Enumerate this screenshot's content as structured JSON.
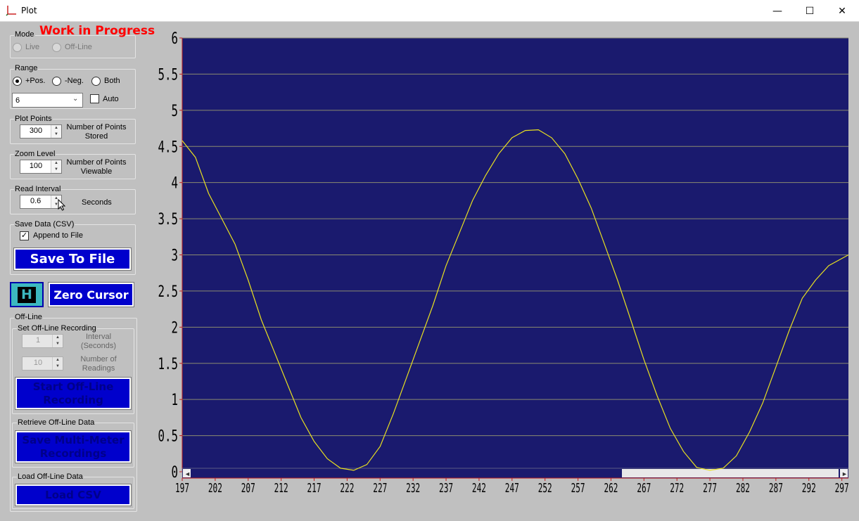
{
  "window": {
    "title": "Plot",
    "controls": [
      "—",
      "☐",
      "✕"
    ]
  },
  "wip": "Work in Progress",
  "mode": {
    "label": "Mode",
    "live": "Live",
    "offline": "Off-Line"
  },
  "range": {
    "label": "Range",
    "pos": "+Pos.",
    "neg": "-Neg.",
    "both": "Both",
    "selected": "6",
    "auto": "Auto"
  },
  "plot_points": {
    "label": "Plot Points",
    "value": "300",
    "desc": "Number of Points Stored"
  },
  "zoom": {
    "label": "Zoom Level",
    "value": "100",
    "desc": "Number of Points Viewable"
  },
  "read_interval": {
    "label": "Read Interval",
    "value": "0.6",
    "desc": "Seconds"
  },
  "save_data": {
    "label": "Save Data (CSV)",
    "append": "Append to File",
    "button": "Save To File"
  },
  "hold_button": "H",
  "zero_cursor": "Zero Cursor",
  "offline": {
    "label": "Off-Line",
    "set_label": "Set Off-Line Recording",
    "interval_value": "1",
    "interval_label": "Interval (Seconds)",
    "readings_value": "10",
    "readings_label": "Number of Readings",
    "start_button": "Start Off-Line Recording",
    "retrieve_label": "Retrieve Off-Line Data",
    "save_button": "Save Multi-Meter Recordings",
    "load_label": "Load Off-Line Data",
    "load_button": "Load CSV"
  },
  "colors": {
    "plot_bg": "#1a1a6e",
    "trace": "#e8e020",
    "grid": "#8a8a70",
    "button": "#0000cc",
    "wip": "#ff0000"
  },
  "chart_data": {
    "type": "line",
    "title": "",
    "xlabel": "",
    "ylabel": "",
    "y_ticks": [
      "6",
      "5.5",
      "5",
      "4.5",
      "4",
      "3.5",
      "3",
      "2.5",
      "2",
      "1.5",
      "1",
      "0.5",
      "0"
    ],
    "x_ticks": [
      "197",
      "202",
      "207",
      "212",
      "217",
      "222",
      "227",
      "232",
      "237",
      "242",
      "247",
      "252",
      "257",
      "262",
      "267",
      "272",
      "277",
      "282",
      "287",
      "292",
      "297"
    ],
    "ylim": [
      0,
      6
    ],
    "xlim": [
      197,
      298
    ],
    "grid": true,
    "series": [
      {
        "x": [
          197,
          199,
          201,
          203,
          205,
          207,
          209,
          211,
          213,
          215,
          217,
          219,
          221,
          223,
          225,
          227,
          229,
          231,
          233,
          235,
          237,
          239,
          241,
          243,
          245,
          247,
          249,
          251,
          253,
          255,
          257,
          259,
          261,
          263,
          265,
          267,
          269,
          271,
          273,
          275,
          277,
          279,
          281,
          283,
          285,
          287,
          289,
          291,
          293,
          295,
          298
        ],
        "y": [
          4.58,
          4.35,
          3.85,
          3.5,
          3.15,
          2.65,
          2.1,
          1.65,
          1.2,
          0.75,
          0.42,
          0.18,
          0.05,
          0.02,
          0.1,
          0.35,
          0.8,
          1.3,
          1.8,
          2.3,
          2.85,
          3.3,
          3.75,
          4.1,
          4.4,
          4.62,
          4.72,
          4.73,
          4.62,
          4.4,
          4.05,
          3.65,
          3.15,
          2.65,
          2.1,
          1.55,
          1.05,
          0.6,
          0.28,
          0.06,
          0.02,
          0.05,
          0.22,
          0.55,
          0.95,
          1.45,
          1.95,
          2.4,
          2.65,
          2.85,
          3.0
        ]
      }
    ]
  }
}
